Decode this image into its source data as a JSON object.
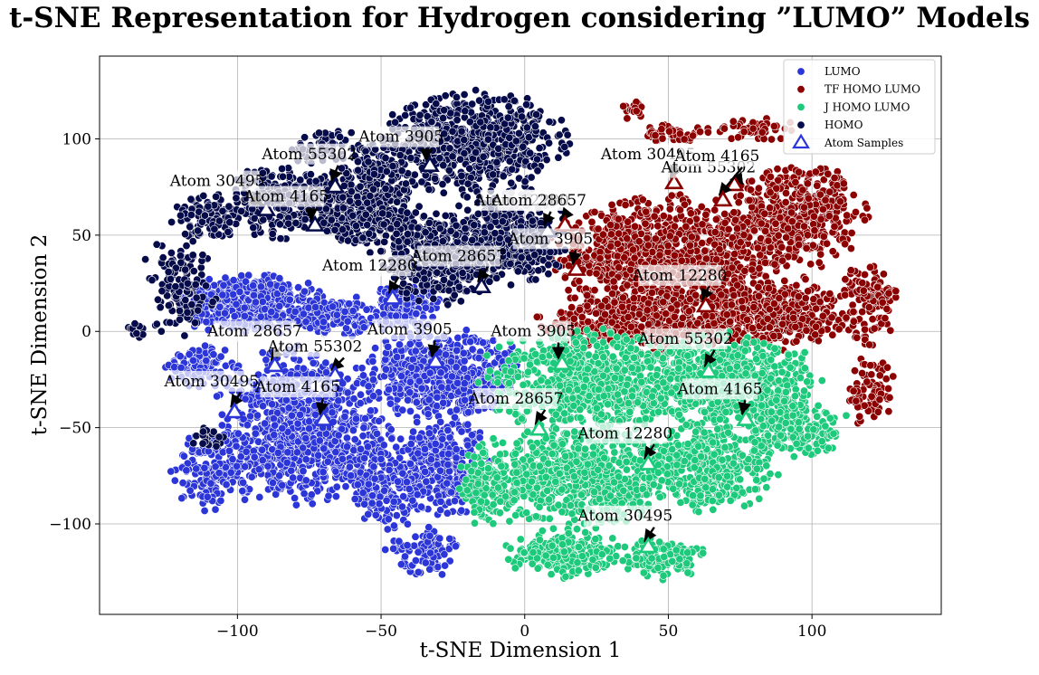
{
  "chart_data": {
    "type": "scatter",
    "title": "t-SNE Representation for Hydrogen considering ”LUMO” Models",
    "xlabel": "t-SNE Dimension 1",
    "ylabel": "t-SNE Dimension 2",
    "xlim": [
      -148,
      145
    ],
    "ylim": [
      -147,
      143
    ],
    "xticks": [
      -100,
      -50,
      0,
      50,
      100
    ],
    "yticks": [
      -100,
      -50,
      0,
      50,
      100
    ],
    "xtick_labels": [
      "−100",
      "−50",
      "0",
      "50",
      "100"
    ],
    "ytick_labels": [
      "−100",
      "−50",
      "0",
      "50",
      "100"
    ],
    "grid": true,
    "legend_position": "top-right",
    "series": [
      {
        "name": "LUMO",
        "color": "#2b35d8",
        "clusters": [
          {
            "cx": -95,
            "cy": 14,
            "rx": 25,
            "ry": 14,
            "n": 420
          },
          {
            "cx": -65,
            "cy": 8,
            "rx": 12,
            "ry": 10,
            "n": 150
          },
          {
            "cx": -42,
            "cy": 12,
            "rx": 12,
            "ry": 12,
            "n": 160
          },
          {
            "cx": -112,
            "cy": -18,
            "rx": 12,
            "ry": 10,
            "n": 110
          },
          {
            "cx": -78,
            "cy": -50,
            "rx": 28,
            "ry": 38,
            "n": 900
          },
          {
            "cx": -28,
            "cy": -22,
            "rx": 26,
            "ry": 22,
            "n": 650
          },
          {
            "cx": -28,
            "cy": -70,
            "rx": 15,
            "ry": 25,
            "n": 300
          },
          {
            "cx": -48,
            "cy": -78,
            "rx": 12,
            "ry": 25,
            "n": 200
          },
          {
            "cx": -35,
            "cy": -115,
            "rx": 12,
            "ry": 12,
            "n": 100
          },
          {
            "cx": -108,
            "cy": -72,
            "rx": 14,
            "ry": 20,
            "n": 160
          }
        ]
      },
      {
        "name": "TF_HOMO_LUMO",
        "color": "#8b0000",
        "clusters": [
          {
            "cx": 50,
            "cy": 40,
            "rx": 38,
            "ry": 28,
            "n": 900
          },
          {
            "cx": 95,
            "cy": 60,
            "rx": 22,
            "ry": 25,
            "n": 500
          },
          {
            "cx": 40,
            "cy": 5,
            "rx": 32,
            "ry": 15,
            "n": 500
          },
          {
            "cx": 85,
            "cy": 10,
            "rx": 28,
            "ry": 18,
            "n": 450
          },
          {
            "cx": 120,
            "cy": 15,
            "rx": 10,
            "ry": 20,
            "n": 120
          },
          {
            "cx": 120,
            "cy": -30,
            "rx": 8,
            "ry": 18,
            "n": 70
          },
          {
            "cx": 52,
            "cy": 103,
            "rx": 12,
            "ry": 5,
            "n": 50
          },
          {
            "cx": 80,
            "cy": 105,
            "rx": 15,
            "ry": 6,
            "n": 50
          },
          {
            "cx": 38,
            "cy": 115,
            "rx": 4,
            "ry": 5,
            "n": 15
          }
        ]
      },
      {
        "name": "J_HOMO_LUMO",
        "color": "#1dc97b",
        "clusters": [
          {
            "cx": 25,
            "cy": -25,
            "rx": 38,
            "ry": 25,
            "n": 800
          },
          {
            "cx": 72,
            "cy": -25,
            "rx": 28,
            "ry": 22,
            "n": 600
          },
          {
            "cx": 95,
            "cy": -50,
            "rx": 16,
            "ry": 15,
            "n": 200
          },
          {
            "cx": 20,
            "cy": -75,
            "rx": 30,
            "ry": 25,
            "n": 650
          },
          {
            "cx": 65,
            "cy": -70,
            "rx": 22,
            "ry": 22,
            "n": 400
          },
          {
            "cx": 15,
            "cy": -115,
            "rx": 20,
            "ry": 12,
            "n": 220
          },
          {
            "cx": 48,
            "cy": -118,
            "rx": 14,
            "ry": 10,
            "n": 120
          },
          {
            "cx": -12,
            "cy": -80,
            "rx": 10,
            "ry": 22,
            "n": 150
          }
        ]
      },
      {
        "name": "HOMO",
        "color": "#060b4a",
        "clusters": [
          {
            "cx": -18,
            "cy": 98,
            "rx": 30,
            "ry": 25,
            "n": 650
          },
          {
            "cx": -5,
            "cy": 50,
            "rx": 20,
            "ry": 24,
            "n": 400
          },
          {
            "cx": -30,
            "cy": 38,
            "rx": 18,
            "ry": 22,
            "n": 350
          },
          {
            "cx": -55,
            "cy": 65,
            "rx": 18,
            "ry": 22,
            "n": 380
          },
          {
            "cx": -85,
            "cy": 68,
            "rx": 18,
            "ry": 18,
            "n": 250
          },
          {
            "cx": -110,
            "cy": 60,
            "rx": 12,
            "ry": 12,
            "n": 110
          },
          {
            "cx": -120,
            "cy": 25,
            "rx": 12,
            "ry": 25,
            "n": 120
          },
          {
            "cx": -68,
            "cy": 95,
            "rx": 12,
            "ry": 10,
            "n": 80
          },
          {
            "cx": -50,
            "cy": 90,
            "rx": 10,
            "ry": 10,
            "n": 60
          },
          {
            "cx": -110,
            "cy": -55,
            "rx": 6,
            "ry": 5,
            "n": 20
          },
          {
            "cx": -135,
            "cy": 0,
            "rx": 4,
            "ry": 4,
            "n": 10
          }
        ]
      }
    ],
    "atom_samples": [
      {
        "label": "Atom 3905",
        "series": "HOMO",
        "x": -33,
        "y": 86,
        "tx": -43,
        "ty": 99
      },
      {
        "label": "Atom 55302",
        "series": "HOMO",
        "x": -66,
        "y": 75,
        "tx": -75,
        "ty": 90
      },
      {
        "label": "Atom 30495",
        "series": "HOMO",
        "x": -90,
        "y": 63,
        "tx": -107,
        "ty": 76
      },
      {
        "label": "Atom 4165",
        "series": "HOMO",
        "x": -73,
        "y": 55,
        "tx": -83,
        "ty": 68
      },
      {
        "label": "Atom 12280",
        "series": "HOMO",
        "x": 8,
        "y": 52,
        "tx": -1,
        "ty": 66
      },
      {
        "label": "Atom 28657",
        "series": "HOMO",
        "x": -15,
        "y": 23,
        "tx": -23,
        "ty": 37
      },
      {
        "label": "Atom 28657",
        "series": "TF_HOMO_LUMO",
        "x": 14,
        "y": 55,
        "tx": 5,
        "ty": 66
      },
      {
        "label": "Atom 30495",
        "series": "TF_HOMO_LUMO",
        "x": 52,
        "y": 77,
        "tx": 43,
        "ty": 90
      },
      {
        "label": "Atom 55302",
        "series": "TF_HOMO_LUMO",
        "x": 73,
        "y": 76,
        "tx": 64,
        "ty": 83
      },
      {
        "label": "Atom 4165",
        "series": "TF_HOMO_LUMO",
        "x": 69,
        "y": 68,
        "tx": 67,
        "ty": 89
      },
      {
        "label": "Atom 3905",
        "series": "TF_HOMO_LUMO",
        "x": 18,
        "y": 32,
        "tx": 9,
        "ty": 46
      },
      {
        "label": "Atom 12280",
        "series": "TF_HOMO_LUMO",
        "x": 63,
        "y": 13,
        "tx": 54,
        "ty": 27
      },
      {
        "label": "Atom 12280",
        "series": "LUMO",
        "x": -46,
        "y": 17,
        "tx": -54,
        "ty": 32
      },
      {
        "label": "Atom 28657",
        "series": "LUMO",
        "x": -87,
        "y": -18,
        "tx": -94,
        "ty": -2
      },
      {
        "label": "Atom 55302",
        "series": "LUMO",
        "x": -66,
        "y": -23,
        "tx": -73,
        "ty": -10
      },
      {
        "label": "Atom 3905",
        "series": "LUMO",
        "x": -31,
        "y": -16,
        "tx": -40,
        "ty": -1
      },
      {
        "label": "Atom 30495",
        "series": "LUMO",
        "x": -101,
        "y": -42,
        "tx": -109,
        "ty": -28
      },
      {
        "label": "Atom 4165",
        "series": "LUMO",
        "x": -70,
        "y": -46,
        "tx": -79,
        "ty": -31
      },
      {
        "label": "Atom 3905",
        "series": "J_HOMO_LUMO",
        "x": 13,
        "y": -17,
        "tx": 3,
        "ty": -2
      },
      {
        "label": "Atom 55302",
        "series": "J_HOMO_LUMO",
        "x": 64,
        "y": -21,
        "tx": 56,
        "ty": -6
      },
      {
        "label": "Atom 28657",
        "series": "J_HOMO_LUMO",
        "x": 5,
        "y": -51,
        "tx": -3,
        "ty": -37
      },
      {
        "label": "Atom 4165",
        "series": "J_HOMO_LUMO",
        "x": 77,
        "y": -46,
        "tx": 68,
        "ty": -32
      },
      {
        "label": "Atom 12280",
        "series": "J_HOMO_LUMO",
        "x": 43,
        "y": -69,
        "tx": 35,
        "ty": -55
      },
      {
        "label": "Atom 30495",
        "series": "J_HOMO_LUMO",
        "x": 43,
        "y": -112,
        "tx": 35,
        "ty": -98
      }
    ],
    "legend": {
      "entries": [
        "LUMO",
        "TF_HOMO_LUMO",
        "J_HOMO_LUMO",
        "HOMO",
        "Atom Samples"
      ],
      "labels": [
        "LUMO",
        "TF HOMO LUMO",
        "J HOMO LUMO",
        "HOMO",
        "Atom Samples"
      ]
    }
  }
}
